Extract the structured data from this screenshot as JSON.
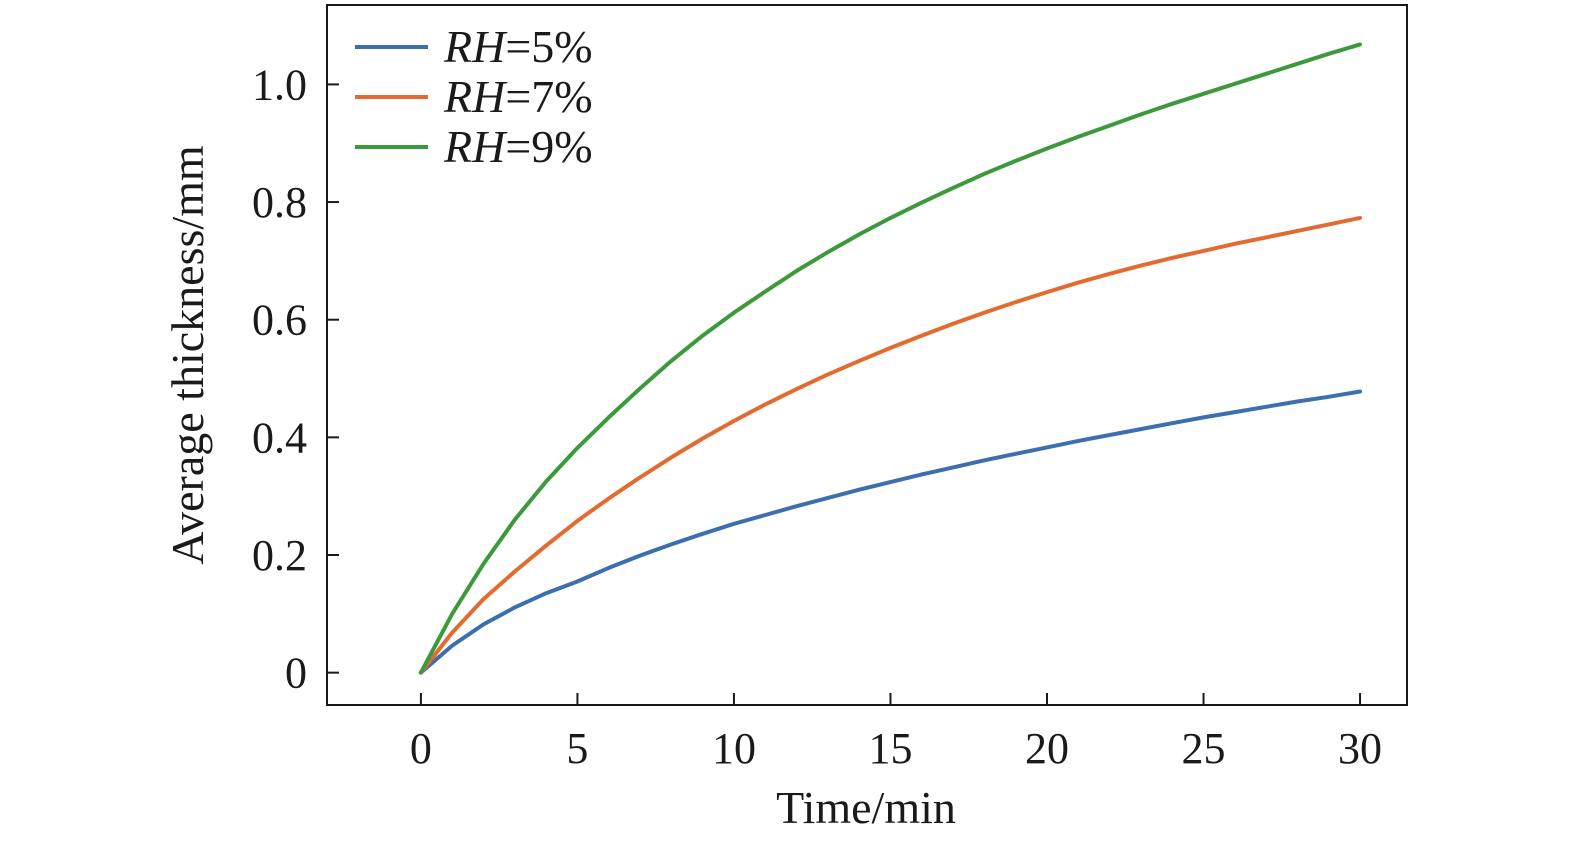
{
  "chart_data": {
    "type": "line",
    "title": "",
    "xlabel": "Time/min",
    "ylabel": "Average thickness/mm",
    "xlim": [
      -3,
      31.5
    ],
    "ylim": [
      -0.055,
      1.135
    ],
    "xticks": [
      0,
      5,
      10,
      15,
      20,
      25,
      30
    ],
    "xtick_labels": [
      "0",
      "5",
      "10",
      "15",
      "20",
      "25",
      "30"
    ],
    "yticks": [
      0,
      0.2,
      0.4,
      0.6,
      0.8,
      1.0
    ],
    "ytick_labels": [
      "0",
      "0.2",
      "0.4",
      "0.6",
      "0.8",
      "1.0"
    ],
    "grid": false,
    "legend_position": "top-left",
    "x": [
      0,
      1,
      2,
      3,
      4,
      5,
      6,
      7,
      8,
      9,
      10,
      11,
      12,
      13,
      14,
      15,
      16,
      17,
      18,
      19,
      20,
      21,
      22,
      23,
      24,
      25,
      26,
      27,
      28,
      29,
      30
    ],
    "series": [
      {
        "name": "RH=5%",
        "var": "RH",
        "rest": "=5%",
        "color": "#3c6fb0",
        "values": [
          0.0,
          0.046,
          0.082,
          0.111,
          0.135,
          0.155,
          0.178,
          0.199,
          0.218,
          0.236,
          0.253,
          0.268,
          0.283,
          0.297,
          0.311,
          0.324,
          0.337,
          0.349,
          0.361,
          0.372,
          0.383,
          0.394,
          0.404,
          0.414,
          0.424,
          0.434,
          0.443,
          0.452,
          0.461,
          0.469,
          0.478
        ]
      },
      {
        "name": "RH=7%",
        "var": "RH",
        "rest": "=7%",
        "color": "#e46b2f",
        "values": [
          0.0,
          0.068,
          0.125,
          0.172,
          0.216,
          0.258,
          0.296,
          0.332,
          0.366,
          0.398,
          0.428,
          0.456,
          0.482,
          0.507,
          0.53,
          0.552,
          0.573,
          0.593,
          0.612,
          0.63,
          0.647,
          0.663,
          0.678,
          0.692,
          0.705,
          0.717,
          0.729,
          0.74,
          0.751,
          0.762,
          0.773
        ]
      },
      {
        "name": "RH=9%",
        "var": "RH",
        "rest": "=9%",
        "color": "#3c9a3c",
        "values": [
          0.0,
          0.1,
          0.185,
          0.26,
          0.325,
          0.382,
          0.434,
          0.483,
          0.53,
          0.573,
          0.612,
          0.648,
          0.683,
          0.715,
          0.745,
          0.773,
          0.799,
          0.824,
          0.848,
          0.87,
          0.891,
          0.911,
          0.93,
          0.949,
          0.967,
          0.984,
          1.001,
          1.018,
          1.035,
          1.052,
          1.068
        ]
      }
    ]
  }
}
